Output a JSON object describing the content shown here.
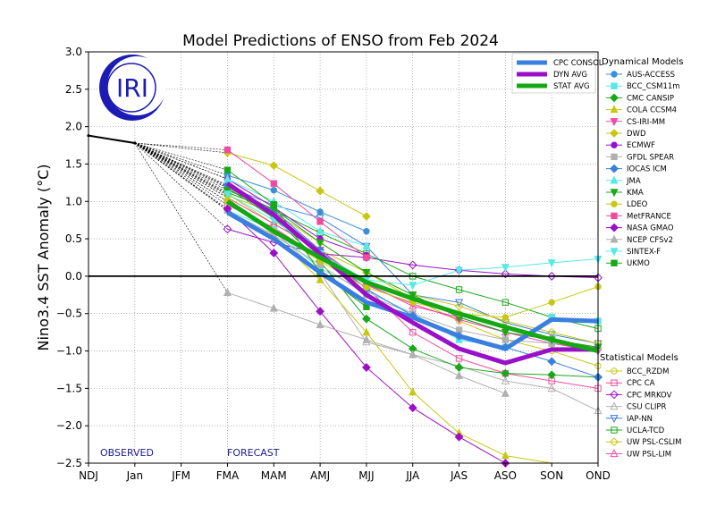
{
  "chart_data": {
    "type": "line",
    "title": "Model Predictions of ENSO from Feb 2024",
    "ylabel": "Nino3.4 SST Anomaly (°C)",
    "xlabel": "",
    "categories": [
      "NDJ",
      "Jan",
      "JFM",
      "FMA",
      "MAM",
      "AMJ",
      "MJJ",
      "JJA",
      "JAS",
      "ASO",
      "SON",
      "OND"
    ],
    "ylim": [
      -2.5,
      3.0
    ],
    "yticks": [
      "3.0",
      "2.5",
      "2.0",
      "1.5",
      "1.0",
      "0.5",
      "0.0",
      "−0.5",
      "−1.0",
      "−1.5",
      "−2.0",
      "−2.5"
    ],
    "ytick_values": [
      3.0,
      2.5,
      2.0,
      1.5,
      1.0,
      0.5,
      0.0,
      -0.5,
      -1.0,
      -1.5,
      -2.0,
      -2.5
    ],
    "grid": true,
    "logo_text": "IRI",
    "annotations": {
      "observed": "OBSERVED",
      "forecast": "FORECAST"
    },
    "observed": [
      {
        "x": "NDJ",
        "y": 1.88
      },
      {
        "x": "Jan",
        "y": 1.78
      }
    ],
    "averages": [
      {
        "name": "CPC CONSOL",
        "color": "#3a7fe0",
        "values": [
          0.85,
          0.5,
          0.05,
          -0.35,
          -0.55,
          -0.8,
          -0.97,
          -0.58,
          -0.6
        ]
      },
      {
        "name": "DYN AVG",
        "color": "#9a10c8",
        "values": [
          1.24,
          0.82,
          0.3,
          -0.25,
          -0.62,
          -0.97,
          -1.16,
          -0.98,
          -0.98
        ]
      },
      {
        "name": "STAT AVG",
        "color": "#14a814",
        "values": [
          1.0,
          0.6,
          0.25,
          -0.08,
          -0.3,
          -0.5,
          -0.68,
          -0.85,
          -1.0
        ]
      }
    ],
    "dynamical_title": "Dynamical Models",
    "statistical_title": "Statistical Models",
    "dynamical": [
      {
        "name": "AUS-ACCESS",
        "color": "#3a8fd8",
        "marker": "circle",
        "values": [
          1.35,
          1.15,
          0.86,
          0.6
        ]
      },
      {
        "name": "BCC_CSM11m",
        "color": "#59e8e8",
        "marker": "square",
        "values": [
          0.88,
          0.62,
          0.1,
          -0.2,
          -0.5,
          -0.85,
          -0.95,
          -0.55,
          -0.6
        ]
      },
      {
        "name": "CMC CANSIP",
        "color": "#18a818",
        "marker": "diamond",
        "values": [
          1.18,
          0.78,
          0.2,
          -0.57,
          -0.97,
          -1.22,
          -1.3,
          -1.32,
          -1.35
        ]
      },
      {
        "name": "COLA CCSM4",
        "color": "#c8c814",
        "marker": "triangle-up",
        "values": [
          1.05,
          0.55,
          -0.05,
          -0.75,
          -1.55,
          -2.1,
          -2.4,
          -2.55,
          -2.6
        ]
      },
      {
        "name": "CS-IRI-MM",
        "color": "#f04ba0",
        "marker": "triangle-down",
        "values": [
          1.2,
          0.8,
          0.35,
          -0.12,
          -0.37,
          -0.58,
          -0.75,
          -0.9,
          -1.0
        ]
      },
      {
        "name": "DWD",
        "color": "#c8c814",
        "marker": "diamond",
        "values": [
          1.65,
          1.48,
          1.14,
          0.8
        ]
      },
      {
        "name": "ECMWF",
        "color": "#9a10c8",
        "marker": "circle",
        "values": [
          1.3,
          0.92,
          0.5,
          0.28
        ]
      },
      {
        "name": "GFDL SPEAR",
        "color": "#b0b0b0",
        "marker": "square",
        "values": [
          0.88,
          0.55,
          0.15,
          -0.25,
          -0.5,
          -0.72,
          -0.85,
          -0.9,
          -0.95
        ]
      },
      {
        "name": "IOCAS ICM",
        "color": "#3a7fe0",
        "marker": "diamond",
        "values": [
          1.22,
          0.88,
          0.35,
          -0.17,
          -0.53,
          -0.8,
          -0.95,
          -1.14,
          -1.35
        ]
      },
      {
        "name": "JMA",
        "color": "#59e8e8",
        "marker": "triangle-up",
        "values": [
          1.3,
          1.0,
          0.6,
          0.4
        ]
      },
      {
        "name": "KMA",
        "color": "#18a818",
        "marker": "triangle-down",
        "values": [
          1.15,
          0.9,
          0.45,
          0.05,
          -0.25,
          -0.55,
          -0.75,
          -0.85,
          -0.95
        ]
      },
      {
        "name": "LDEO",
        "color": "#c8c814",
        "marker": "circle",
        "values": [
          1.0,
          0.6,
          0.2,
          -0.15,
          -0.35,
          -0.5,
          -0.55,
          -0.35,
          -0.14
        ]
      },
      {
        "name": "MetFRANCE",
        "color": "#f04ba0",
        "marker": "square",
        "values": [
          1.69,
          1.24,
          0.73,
          0.25
        ]
      },
      {
        "name": "NASA GMAO",
        "color": "#9a10c8",
        "marker": "diamond",
        "values": [
          0.9,
          0.31,
          -0.47,
          -1.22,
          -1.76,
          -2.15,
          -2.5
        ]
      },
      {
        "name": "NCEP CFSv2",
        "color": "#b0b0b0",
        "marker": "triangle-up",
        "values": [
          -0.22,
          -0.43,
          -0.65,
          -0.85,
          -1.05,
          -1.33,
          -1.57
        ]
      },
      {
        "name": "SINTEX-F",
        "color": "#59e8e8",
        "marker": "triangle-down",
        "values": [
          1.1,
          0.75,
          0.3,
          -0.05,
          -0.12,
          0.08,
          0.12,
          0.18,
          0.23
        ]
      },
      {
        "name": "UKMO",
        "color": "#18a818",
        "marker": "square",
        "values": [
          1.42,
          0.96,
          0.05,
          -0.41
        ]
      }
    ],
    "statistical": [
      {
        "name": "BCC_RZDM",
        "color": "#c8c814",
        "marker": "circle",
        "values": [
          1.1,
          0.7,
          0.35,
          0.05,
          -0.3,
          -0.6,
          -0.85,
          -1.0,
          -1.2
        ]
      },
      {
        "name": "CPC CA",
        "color": "#f04ba0",
        "marker": "square",
        "values": [
          0.95,
          0.65,
          0.25,
          -0.15,
          -0.75,
          -1.1,
          -1.3,
          -1.4,
          -1.5
        ]
      },
      {
        "name": "CPC MRKOV",
        "color": "#9a10c8",
        "marker": "diamond",
        "values": [
          0.63,
          0.45,
          0.3,
          0.25,
          0.15,
          0.08,
          0.03,
          0.0,
          -0.02
        ]
      },
      {
        "name": "CSU CLIPR",
        "color": "#b0b0b0",
        "marker": "triangle-up",
        "values": [
          1.0,
          0.6,
          0.05,
          -0.88,
          -1.05,
          -1.2,
          -1.4,
          -1.5,
          -1.8
        ]
      },
      {
        "name": "IAP-NN",
        "color": "#3a7fe0",
        "marker": "triangle-down",
        "values": [
          1.2,
          0.95,
          0.78,
          0.4,
          -0.25,
          -0.35,
          -0.62,
          -0.78,
          -0.9
        ]
      },
      {
        "name": "UCLA-TCD",
        "color": "#18a818",
        "marker": "square",
        "values": [
          1.12,
          0.88,
          0.58,
          0.3,
          0.0,
          -0.18,
          -0.35,
          -0.55,
          -0.7
        ]
      },
      {
        "name": "UW PSL-CSLIM",
        "color": "#c8c814",
        "marker": "diamond",
        "values": [
          1.08,
          0.85,
          0.45,
          0.05,
          -0.25,
          -0.4,
          -0.6,
          -0.75,
          -0.9
        ]
      },
      {
        "name": "UW PSL-LIM",
        "color": "#f04ba0",
        "marker": "triangle-up",
        "values": [
          1.05,
          0.7,
          0.35,
          -0.1,
          -0.4,
          -0.55,
          -0.75,
          -0.85,
          -0.95
        ]
      }
    ]
  }
}
